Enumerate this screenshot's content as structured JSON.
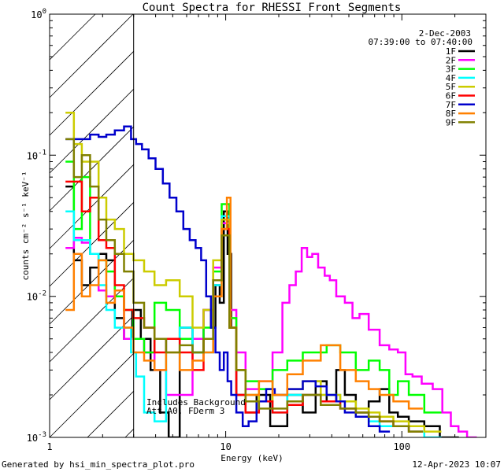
{
  "chart_data": {
    "type": "line",
    "title": "Count Spectra for RHESSI Front Segments",
    "xlabel": "Energy (keV)",
    "ylabel": "counts cm⁻² s⁻¹ keV⁻¹",
    "xscale": "log",
    "yscale": "log",
    "xlim": [
      1,
      300
    ],
    "ylim": [
      0.001,
      1
    ],
    "x_ticks": [
      {
        "value": 1,
        "label": "1"
      },
      {
        "value": 10,
        "label": "10"
      },
      {
        "value": 100,
        "label": "100"
      }
    ],
    "y_ticks": [
      {
        "value": 0.001,
        "base": "10",
        "exp": "-3"
      },
      {
        "value": 0.01,
        "base": "10",
        "exp": "-2"
      },
      {
        "value": 0.1,
        "base": "10",
        "exp": "-1"
      },
      {
        "value": 1,
        "base": "10",
        "exp": "0"
      }
    ],
    "hatched_region": [
      1,
      3
    ],
    "legend_placement": "top-right",
    "date": "2-Dec-2003",
    "time_range": "07:39:00 to 07:40:00",
    "annotations": [
      "Includes Background",
      "Att A0, FDerm 3"
    ],
    "series": [
      {
        "name": "1F",
        "color": "#000000",
        "x": [
          1.3,
          1.45,
          1.6,
          1.8,
          2.0,
          2.2,
          2.5,
          2.8,
          3.1,
          3.5,
          4.0,
          4.5,
          5.0,
          6.0,
          7.0,
          8.0,
          8.5,
          9.0,
          9.5,
          10.0,
          10.5,
          11.0,
          12.0,
          14.0,
          16,
          20,
          25,
          30,
          35,
          40,
          45,
          50,
          60,
          70,
          80,
          90,
          100,
          120,
          150,
          180,
          200
        ],
        "y": [
          0.06,
          0.018,
          0.012,
          0.016,
          0.02,
          0.018,
          0.007,
          0.005,
          0.008,
          0.005,
          0.003,
          0.0015,
          0.001,
          0.006,
          0.004,
          0.008,
          0.006,
          0.012,
          0.009,
          0.04,
          0.02,
          0.006,
          0.002,
          0.0015,
          0.002,
          0.0012,
          0.002,
          0.0015,
          0.0025,
          0.0018,
          0.003,
          0.002,
          0.0015,
          0.0018,
          0.0022,
          0.0015,
          0.0014,
          0.0013,
          0.0012,
          0.001,
          0.001
        ]
      },
      {
        "name": "2F",
        "color": "#ff00ff",
        "x": [
          1.3,
          1.45,
          1.6,
          1.8,
          2.0,
          2.2,
          2.5,
          2.8,
          3.2,
          3.7,
          4.2,
          5.0,
          6.0,
          7.0,
          8.0,
          9.0,
          10.0,
          11.0,
          12.0,
          14.0,
          17.0,
          20,
          22,
          24,
          26,
          28,
          30,
          32,
          35,
          38,
          40,
          45,
          50,
          55,
          60,
          70,
          80,
          90,
          100,
          110,
          120,
          140,
          160,
          180,
          200,
          220,
          250
        ],
        "y": [
          0.022,
          0.026,
          0.024,
          0.02,
          0.011,
          0.01,
          0.011,
          0.005,
          0.005,
          0.004,
          0.003,
          0.002,
          0.002,
          0.005,
          0.008,
          0.016,
          0.033,
          0.008,
          0.004,
          0.0022,
          0.0025,
          0.004,
          0.009,
          0.012,
          0.015,
          0.022,
          0.019,
          0.02,
          0.016,
          0.014,
          0.013,
          0.01,
          0.009,
          0.007,
          0.0075,
          0.0058,
          0.0045,
          0.0042,
          0.004,
          0.0028,
          0.0027,
          0.0024,
          0.0022,
          0.0015,
          0.0012,
          0.0011,
          0.001
        ]
      },
      {
        "name": "3F",
        "color": "#00ff00",
        "x": [
          1.3,
          1.45,
          1.6,
          1.8,
          2.0,
          2.2,
          2.5,
          2.8,
          3.2,
          3.7,
          4.2,
          5.0,
          6.0,
          7.0,
          8.0,
          9.0,
          10.0,
          11.0,
          12.0,
          14.0,
          17.0,
          20,
          25,
          30,
          35,
          40,
          50,
          60,
          70,
          80,
          90,
          100,
          120,
          150
        ],
        "y": [
          0.09,
          0.03,
          0.07,
          0.02,
          0.018,
          0.015,
          0.01,
          0.008,
          0.005,
          0.004,
          0.009,
          0.008,
          0.005,
          0.004,
          0.006,
          0.015,
          0.045,
          0.007,
          0.003,
          0.0025,
          0.0022,
          0.003,
          0.0035,
          0.004,
          0.004,
          0.0045,
          0.004,
          0.003,
          0.0035,
          0.003,
          0.002,
          0.0025,
          0.002,
          0.0015
        ]
      },
      {
        "name": "4F",
        "color": "#00ffff",
        "x": [
          1.3,
          1.45,
          1.6,
          1.8,
          2.0,
          2.2,
          2.5,
          2.8,
          3.0,
          3.2,
          3.7,
          4.2,
          5.0,
          6.0,
          7.0,
          8.0,
          9.0,
          10.0,
          11.0,
          12.0,
          14.0,
          17.0,
          20,
          25,
          30,
          40,
          50,
          60,
          70,
          80,
          100,
          120,
          150
        ],
        "y": [
          0.04,
          0.025,
          0.025,
          0.02,
          0.012,
          0.008,
          0.006,
          0.006,
          0.004,
          0.0027,
          0.0015,
          0.0013,
          0.005,
          0.006,
          0.004,
          0.004,
          0.012,
          0.037,
          0.006,
          0.003,
          0.002,
          0.0018,
          0.0015,
          0.002,
          0.002,
          0.002,
          0.0018,
          0.0015,
          0.0013,
          0.0012,
          0.0012,
          0.0011,
          0.001
        ]
      },
      {
        "name": "5F",
        "color": "#cccc00",
        "x": [
          1.3,
          1.45,
          1.6,
          1.8,
          2.0,
          2.2,
          2.5,
          2.8,
          3.2,
          3.7,
          4.2,
          5.0,
          6.0,
          7.0,
          8.0,
          9.0,
          10.0,
          11.0,
          12.0,
          14.0,
          17.0,
          20,
          25,
          30,
          40,
          50,
          60,
          70,
          80,
          100,
          120,
          150
        ],
        "y": [
          0.2,
          0.12,
          0.09,
          0.09,
          0.05,
          0.035,
          0.03,
          0.02,
          0.018,
          0.015,
          0.012,
          0.013,
          0.01,
          0.006,
          0.008,
          0.018,
          0.035,
          0.006,
          0.003,
          0.002,
          0.0018,
          0.002,
          0.0022,
          0.0025,
          0.002,
          0.0018,
          0.0016,
          0.0015,
          0.0014,
          0.0013,
          0.0012,
          0.0011
        ]
      },
      {
        "name": "6F",
        "color": "#ff0000",
        "x": [
          1.3,
          1.45,
          1.6,
          1.8,
          2.0,
          2.2,
          2.5,
          2.8,
          3.2,
          3.7,
          4.2,
          5.0,
          6.0,
          7.0,
          8.0,
          9.0,
          10.0,
          11.0,
          12.0,
          14.0,
          17.0,
          20,
          25,
          30,
          40,
          50,
          60,
          70,
          80,
          100,
          120
        ],
        "y": [
          0.065,
          0.065,
          0.04,
          0.05,
          0.025,
          0.022,
          0.012,
          0.008,
          0.007,
          0.006,
          0.004,
          0.005,
          0.004,
          0.003,
          0.005,
          0.013,
          0.03,
          0.006,
          0.002,
          0.0015,
          0.0018,
          0.0015,
          0.0017,
          0.002,
          0.0018,
          0.0016,
          0.0015,
          0.0014,
          0.0013,
          0.0012,
          0.0011
        ]
      },
      {
        "name": "7F",
        "color": "#0000cc",
        "x": [
          1.3,
          1.45,
          1.6,
          1.8,
          2.0,
          2.2,
          2.5,
          2.8,
          3.0,
          3.2,
          3.5,
          3.8,
          4.2,
          4.6,
          5.0,
          5.5,
          6.0,
          6.5,
          7.0,
          7.5,
          8.0,
          8.5,
          9.0,
          9.5,
          10.0,
          10.5,
          11.0,
          12.0,
          13.0,
          14.0,
          16,
          18,
          20,
          25,
          30,
          35,
          40,
          45,
          50,
          60,
          70,
          80
        ],
        "y": [
          0.13,
          0.13,
          0.13,
          0.14,
          0.135,
          0.14,
          0.15,
          0.16,
          0.13,
          0.12,
          0.11,
          0.095,
          0.08,
          0.063,
          0.05,
          0.04,
          0.03,
          0.025,
          0.022,
          0.018,
          0.01,
          0.006,
          0.004,
          0.003,
          0.004,
          0.0025,
          0.002,
          0.0015,
          0.0012,
          0.0013,
          0.0018,
          0.0022,
          0.002,
          0.0022,
          0.0025,
          0.0023,
          0.002,
          0.0018,
          0.0015,
          0.0014,
          0.0012,
          0.0011
        ]
      },
      {
        "name": "8F",
        "color": "#ff8000",
        "x": [
          1.3,
          1.45,
          1.6,
          1.8,
          2.0,
          2.2,
          2.5,
          2.8,
          3.2,
          3.7,
          4.2,
          5.0,
          6.0,
          7.0,
          8.0,
          9.0,
          10.0,
          10.3,
          11.0,
          12.0,
          14.0,
          17.0,
          20,
          25,
          30,
          40,
          50,
          60,
          70,
          80,
          100,
          120
        ],
        "y": [
          0.008,
          0.02,
          0.01,
          0.012,
          0.018,
          0.009,
          0.011,
          0.006,
          0.004,
          0.0035,
          0.003,
          0.004,
          0.003,
          0.0035,
          0.004,
          0.01,
          0.03,
          0.05,
          0.006,
          0.003,
          0.002,
          0.0025,
          0.002,
          0.0028,
          0.0035,
          0.0045,
          0.003,
          0.0025,
          0.0022,
          0.002,
          0.0018,
          0.0016
        ]
      },
      {
        "name": "9F",
        "color": "#808000",
        "x": [
          1.3,
          1.45,
          1.6,
          1.8,
          2.0,
          2.2,
          2.5,
          2.8,
          3.2,
          3.7,
          4.2,
          5.0,
          6.0,
          7.0,
          8.0,
          9.0,
          10.0,
          11.0,
          12.0,
          14.0,
          17.0,
          20,
          25,
          30,
          40,
          50,
          60,
          70,
          80,
          100,
          120
        ],
        "y": [
          0.13,
          0.07,
          0.1,
          0.06,
          0.035,
          0.025,
          0.02,
          0.015,
          0.009,
          0.006,
          0.005,
          0.004,
          0.0045,
          0.004,
          0.005,
          0.013,
          0.027,
          0.006,
          0.003,
          0.0018,
          0.0016,
          0.0016,
          0.0018,
          0.002,
          0.0017,
          0.0016,
          0.0015,
          0.0014,
          0.0013,
          0.0012,
          0.0011
        ]
      }
    ]
  },
  "footer": {
    "generated_by": "Generated by hsi_min_spectra_plot.pro",
    "timestamp": "12-Apr-2023 10:07"
  }
}
